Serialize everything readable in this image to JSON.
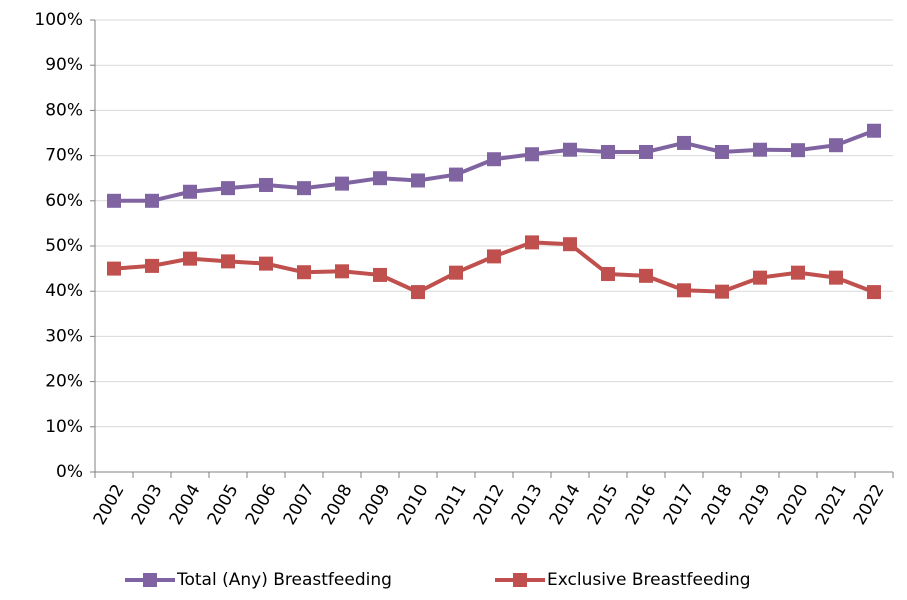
{
  "chart_data": {
    "type": "line",
    "categories": [
      "2002",
      "2003",
      "2004",
      "2005",
      "2006",
      "2007",
      "2008",
      "2009",
      "2010",
      "2011",
      "2012",
      "2013",
      "2014",
      "2015",
      "2016",
      "2017",
      "2018",
      "2019",
      "2020",
      "2021",
      "2022"
    ],
    "series": [
      {
        "name": "Total (Any) Breastfeeding",
        "color": "#8064a2",
        "values": [
          60,
          60,
          62,
          62.8,
          63.5,
          62.8,
          63.8,
          65,
          64.5,
          65.8,
          69.2,
          70.3,
          71.3,
          70.8,
          70.8,
          72.8,
          70.8,
          71.3,
          71.2,
          72.3,
          75.5
        ]
      },
      {
        "name": "Exclusive Breastfeeding",
        "color": "#c0504d",
        "values": [
          45,
          45.6,
          47.2,
          46.6,
          46.1,
          44.2,
          44.4,
          43.6,
          39.8,
          44.1,
          47.7,
          50.8,
          50.4,
          43.8,
          43.4,
          40.2,
          39.9,
          43,
          44.1,
          43,
          39.8
        ]
      }
    ],
    "ylim": [
      0,
      100
    ],
    "yticks": [
      {
        "value": 0,
        "label": "0%"
      },
      {
        "value": 10,
        "label": "10%"
      },
      {
        "value": 20,
        "label": "20%"
      },
      {
        "value": 30,
        "label": "30%"
      },
      {
        "value": 40,
        "label": "40%"
      },
      {
        "value": 50,
        "label": "50%"
      },
      {
        "value": 60,
        "label": "60%"
      },
      {
        "value": 70,
        "label": "70%"
      },
      {
        "value": 80,
        "label": "80%"
      },
      {
        "value": 90,
        "label": "90%"
      },
      {
        "value": 100,
        "label": "100%"
      }
    ],
    "grid": true
  }
}
